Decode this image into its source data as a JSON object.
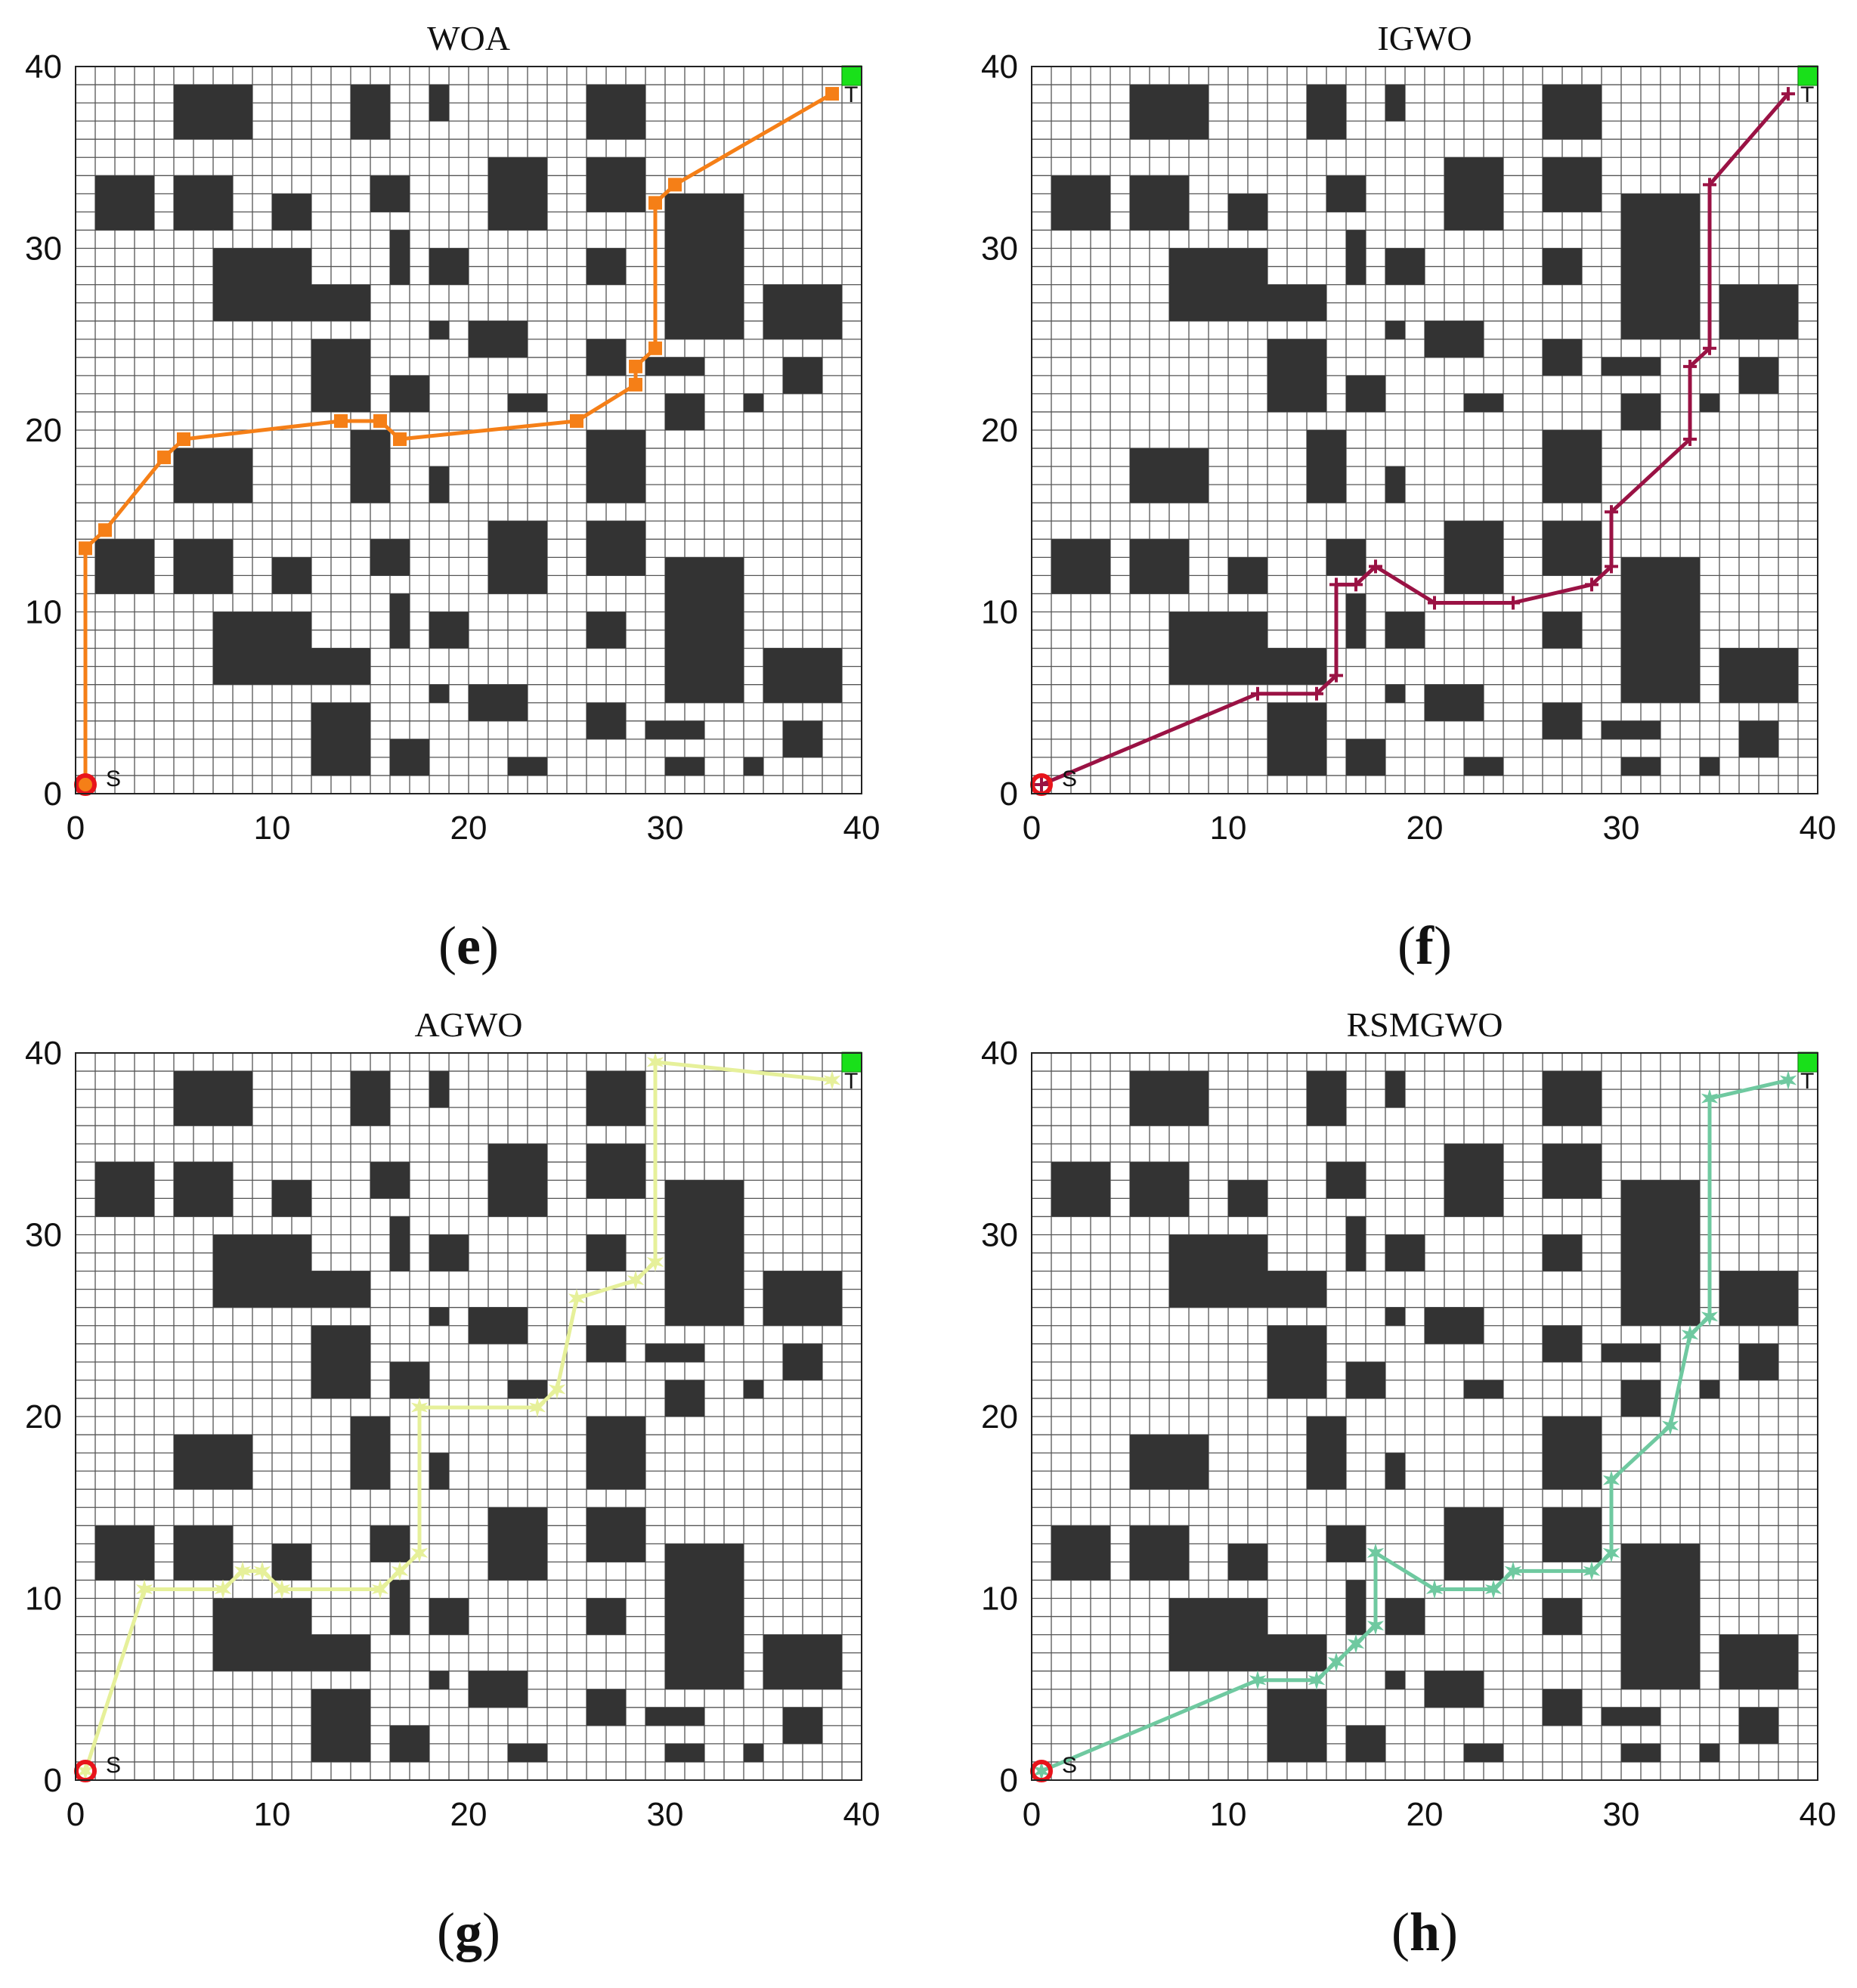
{
  "figure": {
    "panels": [
      {
        "id": "e",
        "title": "WOA",
        "caption_letter": "e"
      },
      {
        "id": "f",
        "title": "IGWO",
        "caption_letter": "f"
      },
      {
        "id": "g",
        "title": "AGWO",
        "caption_letter": "g"
      },
      {
        "id": "h",
        "title": "RSMGWO",
        "caption_letter": "h"
      }
    ]
  },
  "chart_data": [
    {
      "type": "line",
      "title": "WOA",
      "caption": "(e)",
      "xlim": [
        0,
        40
      ],
      "ylim": [
        0,
        40
      ],
      "xticks": [
        "0",
        "10",
        "20",
        "30",
        "40"
      ],
      "yticks": [
        "0",
        "10",
        "20",
        "30",
        "40"
      ],
      "grid": true,
      "start_label": "S",
      "goal_label": "T",
      "series": [
        {
          "color": "#f57f17",
          "marker": "square",
          "x": [
            0.5,
            0.5,
            1.5,
            4.5,
            5.5,
            13.5,
            15.5,
            16.5,
            25.5,
            28.5,
            28.5,
            29.5,
            29.5,
            30.5,
            38.5
          ],
          "y": [
            0.5,
            13.5,
            14.5,
            18.5,
            19.5,
            20.5,
            20.5,
            19.5,
            20.5,
            22.5,
            23.5,
            24.5,
            32.5,
            33.5,
            38.5
          ]
        }
      ]
    },
    {
      "type": "line",
      "title": "IGWO",
      "caption": "(f)",
      "xlim": [
        0,
        40
      ],
      "ylim": [
        0,
        40
      ],
      "xticks": [
        "0",
        "10",
        "20",
        "30",
        "40"
      ],
      "yticks": [
        "0",
        "10",
        "20",
        "30",
        "40"
      ],
      "grid": true,
      "start_label": "S",
      "goal_label": "T",
      "series": [
        {
          "color": "#9a1244",
          "marker": "plus",
          "x": [
            0.5,
            11.5,
            14.5,
            15.5,
            15.5,
            16.5,
            17.5,
            20.5,
            24.5,
            28.5,
            29.5,
            29.5,
            33.5,
            33.5,
            34.5,
            34.5,
            38.5
          ],
          "y": [
            0.5,
            5.5,
            5.5,
            6.5,
            11.5,
            11.5,
            12.5,
            10.5,
            10.5,
            11.5,
            12.5,
            15.5,
            19.5,
            23.5,
            24.5,
            33.5,
            38.5
          ]
        }
      ]
    },
    {
      "type": "line",
      "title": "AGWO",
      "caption": "(g)",
      "xlim": [
        0,
        40
      ],
      "ylim": [
        0,
        40
      ],
      "xticks": [
        "0",
        "10",
        "20",
        "30",
        "40"
      ],
      "yticks": [
        "0",
        "10",
        "20",
        "30",
        "40"
      ],
      "grid": true,
      "start_label": "S",
      "goal_label": "T",
      "series": [
        {
          "color": "#e6f09a",
          "marker": "star",
          "x": [
            0.5,
            3.5,
            7.5,
            8.5,
            9.5,
            10.5,
            15.5,
            16.5,
            17.5,
            17.5,
            23.5,
            24.5,
            25.5,
            28.5,
            29.5,
            29.5,
            38.5
          ],
          "y": [
            0.5,
            10.5,
            10.5,
            11.5,
            11.5,
            10.5,
            10.5,
            11.5,
            12.5,
            20.5,
            20.5,
            21.5,
            26.5,
            27.5,
            28.5,
            39.5,
            38.5
          ]
        }
      ]
    },
    {
      "type": "line",
      "title": "RSMGWO",
      "caption": "(h)",
      "xlim": [
        0,
        40
      ],
      "ylim": [
        0,
        40
      ],
      "xticks": [
        "0",
        "10",
        "20",
        "30",
        "40"
      ],
      "yticks": [
        "0",
        "10",
        "20",
        "30",
        "40"
      ],
      "grid": true,
      "start_label": "S",
      "goal_label": "T",
      "series": [
        {
          "color": "#6fc9a0",
          "marker": "star",
          "x": [
            0.5,
            11.5,
            14.5,
            15.5,
            16.5,
            17.5,
            17.5,
            20.5,
            23.5,
            24.5,
            28.5,
            29.5,
            29.5,
            32.5,
            33.5,
            34.5,
            34.5,
            38.5
          ],
          "y": [
            0.5,
            5.5,
            5.5,
            6.5,
            7.5,
            8.5,
            12.5,
            10.5,
            10.5,
            11.5,
            11.5,
            12.5,
            16.5,
            19.5,
            24.5,
            25.5,
            37.5,
            38.5
          ]
        }
      ]
    }
  ],
  "map": {
    "size": 40,
    "obstacle_color": "#333333",
    "start_color": "#e8141b",
    "goal_color": "#19e01a",
    "start": [
      0.5,
      0.5
    ],
    "goal": [
      39.5,
      39.5
    ],
    "obstacles": [
      [
        5,
        36,
        4,
        3
      ],
      [
        14,
        36,
        2,
        3
      ],
      [
        18,
        37,
        1,
        2
      ],
      [
        26,
        36,
        3,
        3
      ],
      [
        1,
        31,
        3,
        3
      ],
      [
        5,
        31,
        3,
        3
      ],
      [
        10,
        31,
        2,
        2
      ],
      [
        15,
        32,
        2,
        2
      ],
      [
        21,
        31,
        3,
        4
      ],
      [
        26,
        32,
        3,
        3
      ],
      [
        30,
        25,
        4,
        8
      ],
      [
        7,
        26,
        5,
        4
      ],
      [
        12,
        26,
        3,
        2
      ],
      [
        16,
        28,
        1,
        3
      ],
      [
        18,
        28,
        2,
        2
      ],
      [
        26,
        28,
        2,
        2
      ],
      [
        35,
        25,
        4,
        3
      ],
      [
        18,
        25,
        1,
        1
      ],
      [
        20,
        24,
        3,
        2
      ],
      [
        12,
        21,
        3,
        4
      ],
      [
        16,
        21,
        2,
        2
      ],
      [
        26,
        23,
        2,
        2
      ],
      [
        29,
        23,
        3,
        1
      ],
      [
        36,
        22,
        2,
        2
      ],
      [
        22,
        21,
        2,
        1
      ],
      [
        30,
        20,
        2,
        2
      ],
      [
        34,
        21,
        1,
        1
      ],
      [
        5,
        16,
        4,
        3
      ],
      [
        14,
        16,
        2,
        4
      ],
      [
        18,
        16,
        1,
        2
      ],
      [
        26,
        16,
        3,
        4
      ],
      [
        1,
        11,
        3,
        3
      ],
      [
        5,
        11,
        3,
        3
      ],
      [
        10,
        11,
        2,
        2
      ],
      [
        15,
        12,
        2,
        2
      ],
      [
        21,
        11,
        3,
        4
      ],
      [
        26,
        12,
        3,
        3
      ],
      [
        30,
        5,
        4,
        8
      ],
      [
        7,
        6,
        5,
        4
      ],
      [
        12,
        6,
        3,
        2
      ],
      [
        16,
        8,
        1,
        3
      ],
      [
        18,
        8,
        2,
        2
      ],
      [
        26,
        8,
        2,
        2
      ],
      [
        35,
        5,
        4,
        3
      ],
      [
        18,
        5,
        1,
        1
      ],
      [
        20,
        4,
        3,
        2
      ],
      [
        12,
        1,
        3,
        4
      ],
      [
        16,
        1,
        2,
        2
      ],
      [
        26,
        3,
        2,
        2
      ],
      [
        29,
        3,
        3,
        1
      ],
      [
        36,
        2,
        2,
        2
      ],
      [
        22,
        1,
        2,
        1
      ],
      [
        30,
        1,
        2,
        1
      ],
      [
        34,
        1,
        1,
        1
      ]
    ]
  }
}
